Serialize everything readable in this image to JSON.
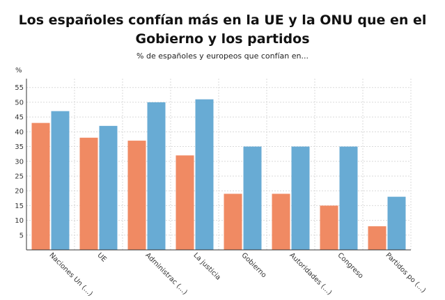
{
  "chart_data": {
    "type": "bar",
    "title": "Los españoles confían más en la UE y la ONU que en el Gobierno y los partidos",
    "subtitle": "% de españoles y europeos que confían en...",
    "ylabel": "%",
    "ylim": [
      0,
      58
    ],
    "yticks": [
      5,
      10,
      15,
      20,
      25,
      30,
      35,
      40,
      45,
      50,
      55
    ],
    "grid": true,
    "categories": [
      "Naciones Un (...)",
      "UE",
      "Administrac (...)",
      "La justicia",
      "Gobierno",
      "Autoridades (...)",
      "Congreso",
      "Partidos po (...)"
    ],
    "series": [
      {
        "values": [
          43,
          38,
          37,
          32,
          19,
          19,
          15,
          8
        ],
        "color": "#f08a63"
      },
      {
        "values": [
          47,
          42,
          50,
          51,
          35,
          35,
          35,
          18
        ],
        "color": "#68abd4"
      }
    ]
  }
}
